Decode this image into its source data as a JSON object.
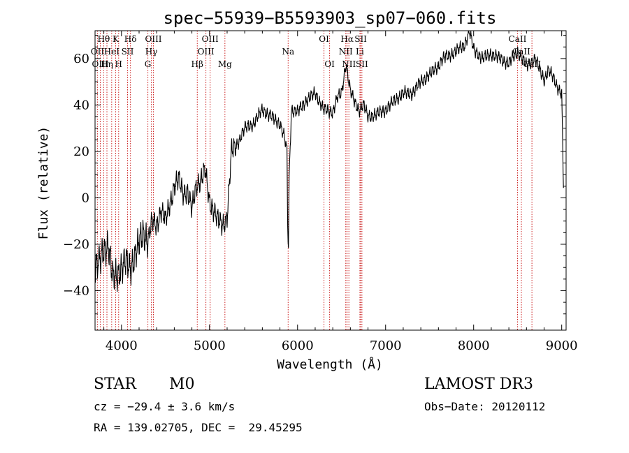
{
  "chart_data": {
    "type": "line",
    "title": "spec−55939−B5593903_sp07−060.fits",
    "xlabel": "Wavelength (Å)",
    "ylabel": "Flux (relative)",
    "xlim": [
      3700,
      9050
    ],
    "ylim": [
      -57,
      72
    ],
    "xticks": [
      4000,
      5000,
      6000,
      7000,
      8000,
      9000
    ],
    "yticks": [
      -40,
      -20,
      0,
      20,
      40,
      60
    ],
    "ytick_labels": [
      "−40",
      "−20",
      "0",
      "20",
      "40",
      "60"
    ],
    "grid": false,
    "series": [
      {
        "name": "flux",
        "x": [
          3700,
          3750,
          3800,
          3850,
          3900,
          3950,
          4000,
          4050,
          4100,
          4150,
          4200,
          4250,
          4300,
          4350,
          4400,
          4450,
          4500,
          4550,
          4600,
          4650,
          4700,
          4750,
          4800,
          4850,
          4900,
          4950,
          5000,
          5050,
          5100,
          5150,
          5200,
          5250,
          5300,
          5400,
          5500,
          5600,
          5700,
          5800,
          5850,
          5880,
          5890,
          5896,
          5905,
          5930,
          6000,
          6100,
          6200,
          6300,
          6400,
          6450,
          6500,
          6550,
          6600,
          6650,
          6700,
          6750,
          6800,
          6900,
          7000,
          7100,
          7200,
          7300,
          7400,
          7500,
          7600,
          7650,
          7700,
          7800,
          7900,
          7950,
          8000,
          8050,
          8100,
          8200,
          8300,
          8400,
          8500,
          8600,
          8700,
          8750,
          8800,
          8850,
          8900,
          8950,
          9000,
          9020
        ],
        "y": [
          -30,
          -28,
          -22,
          -20,
          -35,
          -33,
          -30,
          -28,
          -30,
          -25,
          -20,
          -15,
          -18,
          -10,
          -12,
          -5,
          -10,
          -3,
          5,
          8,
          2,
          3,
          -5,
          5,
          8,
          12,
          -2,
          -5,
          -10,
          -12,
          -8,
          20,
          22,
          30,
          32,
          38,
          35,
          32,
          26,
          20,
          -18,
          -20,
          10,
          38,
          37,
          42,
          45,
          38,
          37,
          43,
          45,
          58,
          46,
          41,
          38,
          40,
          35,
          36,
          38,
          42,
          45,
          45,
          50,
          53,
          57,
          60,
          61,
          63,
          66,
          72,
          64,
          62,
          60,
          62,
          60,
          58,
          63,
          57,
          60,
          55,
          51,
          55,
          52,
          48,
          45,
          5
        ]
      }
    ],
    "line_groups": [
      {
        "name": "Hθ",
        "wavelengths": [
          3798
        ]
      },
      {
        "name": "K",
        "wavelengths": [
          3934
        ]
      },
      {
        "name": "Hδ",
        "wavelengths": [
          4102
        ]
      },
      {
        "name": "OIII",
        "wavelengths": [
          4363
        ]
      },
      {
        "name": "OIII",
        "wavelengths": [
          5007
        ]
      },
      {
        "name": "OI",
        "wavelengths": [
          6300
        ]
      },
      {
        "name": "Hα",
        "wavelengths": [
          6563
        ]
      },
      {
        "name": "SII",
        "wavelengths": [
          6717
        ]
      },
      {
        "name": "CaII",
        "wavelengths": [
          8498
        ]
      },
      {
        "name": "OII",
        "wavelengths": [
          3727
        ]
      },
      {
        "name": "HeI",
        "wavelengths": [
          3889
        ]
      },
      {
        "name": "SII",
        "wavelengths": [
          4069
        ]
      },
      {
        "name": "Hγ",
        "wavelengths": [
          4340
        ]
      },
      {
        "name": "OIII",
        "wavelengths": [
          4959
        ]
      },
      {
        "name": "Na",
        "wavelengths": [
          5893
        ]
      },
      {
        "name": "NII",
        "wavelengths": [
          6548
        ]
      },
      {
        "name": "Li",
        "wavelengths": [
          6708
        ]
      },
      {
        "name": "CaII",
        "wavelengths": [
          8542
        ]
      },
      {
        "name": "OIII",
        "wavelengths": [
          3760
        ]
      },
      {
        "name": "Hη",
        "wavelengths": [
          3835
        ]
      },
      {
        "name": "H",
        "wavelengths": [
          3968
        ]
      },
      {
        "name": "G",
        "wavelengths": [
          4300
        ]
      },
      {
        "name": "Hβ",
        "wavelengths": [
          4861
        ]
      },
      {
        "name": "Mg",
        "wavelengths": [
          5175
        ]
      },
      {
        "name": "OI",
        "wavelengths": [
          6364
        ]
      },
      {
        "name": "NII",
        "wavelengths": [
          6583
        ]
      },
      {
        "name": "SII",
        "wavelengths": [
          6731
        ]
      },
      {
        "name": "CaII",
        "wavelengths": [
          8662
        ]
      }
    ],
    "colors": {
      "line": "#000000",
      "markers": "#cc2222",
      "axes": "#000000"
    }
  },
  "info": {
    "object_class": "STAR",
    "subclass": "M0",
    "survey": "LAMOST DR3",
    "cz": "cz = −29.4 ± 3.6 km/s",
    "obs_date": "Obs−Date: 20120112",
    "coords": "RA = 139.02705, DEC =  29.45295"
  }
}
